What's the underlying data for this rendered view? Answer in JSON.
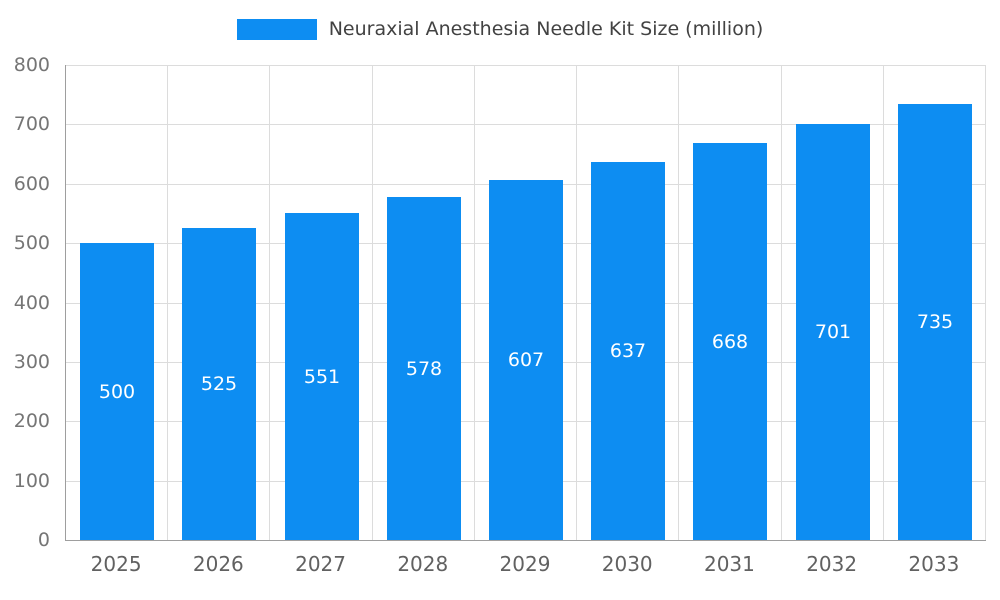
{
  "legend": {
    "label": "Neuraxial Anesthesia Needle Kit Size (million)",
    "swatch_color": "#0d8df2"
  },
  "chart_data": {
    "type": "bar",
    "title": "Neuraxial Anesthesia Needle Kit Size (million)",
    "categories": [
      "2025",
      "2026",
      "2027",
      "2028",
      "2029",
      "2030",
      "2031",
      "2032",
      "2033"
    ],
    "values": [
      500,
      525,
      551,
      578,
      607,
      637,
      668,
      701,
      735
    ],
    "xlabel": "",
    "ylabel": "",
    "ylim": [
      0,
      800
    ],
    "ytick_step": 100,
    "yticks": [
      0,
      100,
      200,
      300,
      400,
      500,
      600,
      700,
      800
    ],
    "grid": true,
    "legend_position": "top",
    "bar_color": "#0d8df2",
    "value_label_color": "#ffffff",
    "value_label_position": "inside-center"
  }
}
